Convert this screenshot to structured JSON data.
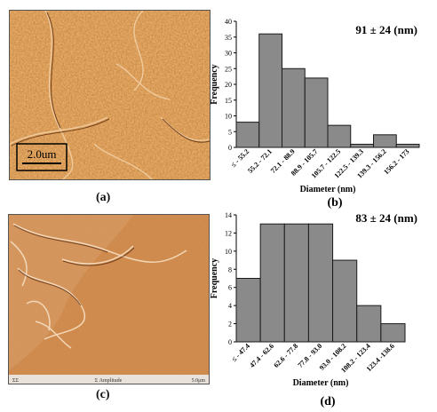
{
  "panels": {
    "a": {
      "letter": "(a)",
      "scalebar": "2.0um"
    },
    "b": {
      "letter": "(b)"
    },
    "c": {
      "letter": "(c)",
      "footer_left": "ΣΣ",
      "footer_center": "Σ Amplitude",
      "footer_right": "5.0μm"
    },
    "d": {
      "letter": "(d)"
    }
  },
  "colors": {
    "bar_fill": "#8a8a8a",
    "bar_stroke": "#1a1a1a",
    "afm_base": "#b8632a"
  },
  "chart_data": [
    {
      "type": "bar",
      "annotation": "91 ± 24 (nm)",
      "xlabel": "Diameter (nm)",
      "ylabel": "Frequency",
      "ylim": [
        0,
        40
      ],
      "yticks": [
        0,
        5,
        10,
        15,
        20,
        25,
        30,
        35,
        40
      ],
      "categories": [
        "≤ - 55.2",
        "55.2 - 72.1",
        "72.1 - 88.9",
        "88.9 - 105.7",
        "105.7 - 122.5",
        "122.5 - 139.3",
        "139.3 - 156.2",
        "156.2 - 173"
      ],
      "values": [
        8,
        36,
        25,
        22,
        7,
        1,
        4,
        1
      ]
    },
    {
      "type": "bar",
      "annotation": "83 ± 24 (nm)",
      "xlabel": "Diameter (nm)",
      "ylabel": "Frequency",
      "ylim": [
        0,
        14
      ],
      "yticks": [
        0,
        2,
        4,
        6,
        8,
        10,
        12,
        14
      ],
      "categories": [
        "≤ - 47.4",
        "47.4 - 62.6",
        "62.6 - 77.8",
        "77.8 - 93.0",
        "93.0 - 108.2",
        "108.2 - 123.4",
        "123.4 -138.6"
      ],
      "values": [
        7,
        13,
        13,
        13,
        9,
        4,
        2
      ]
    }
  ]
}
